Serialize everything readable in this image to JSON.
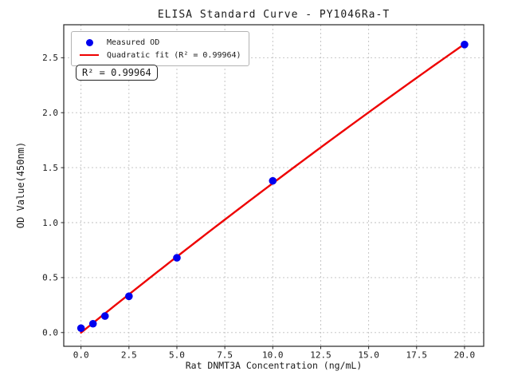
{
  "figure": {
    "title": "ELISA Standard Curve - PY1046Ra-T",
    "background_color": "#ffffff"
  },
  "legend": {
    "measured_label": "Measured OD",
    "fit_label": "Quadratic fit (R² = 0.99964)"
  },
  "annotation": {
    "r_squared_text": "R² = 0.99964"
  },
  "chart_data": {
    "type": "scatter",
    "title": "ELISA Standard Curve - PY1046Ra-T",
    "xlabel": "Rat DNMT3A Concentration (ng/mL)",
    "ylabel": "OD Value(450nm)",
    "series": [
      {
        "name": "Measured OD",
        "x": [
          0,
          0.625,
          1.25,
          2.5,
          5,
          10,
          20
        ],
        "y": [
          0.04,
          0.08,
          0.15,
          0.33,
          0.68,
          1.38,
          2.62
        ]
      }
    ],
    "fit": {
      "name": "Quadratic fit",
      "type": "quadratic",
      "r_squared": 0.99964,
      "x_range": [
        0,
        20
      ]
    },
    "x_tick_values": [
      0,
      2.5,
      5,
      7.5,
      10,
      12.5,
      15,
      17.5,
      20
    ],
    "x_tick_labels": [
      "0.0",
      "2.5",
      "5.0",
      "7.5",
      "10.0",
      "12.5",
      "15.0",
      "17.5",
      "20.0"
    ],
    "y_tick_values": [
      0,
      0.5,
      1.0,
      1.5,
      2.0,
      2.5
    ],
    "y_tick_labels": [
      "0.0",
      "0.5",
      "1.0",
      "1.5",
      "2.0",
      "2.5"
    ],
    "xlim": [
      -0.9,
      21.0
    ],
    "ylim": [
      -0.125,
      2.8
    ],
    "grid": true,
    "legend_position": "upper left",
    "colors": {
      "point_color": "#0000ee",
      "fit_line_color": "#ee0000",
      "grid_color": "#bfbfbf",
      "spine_color": "#262626",
      "text_color": "#1a1a1a"
    }
  }
}
